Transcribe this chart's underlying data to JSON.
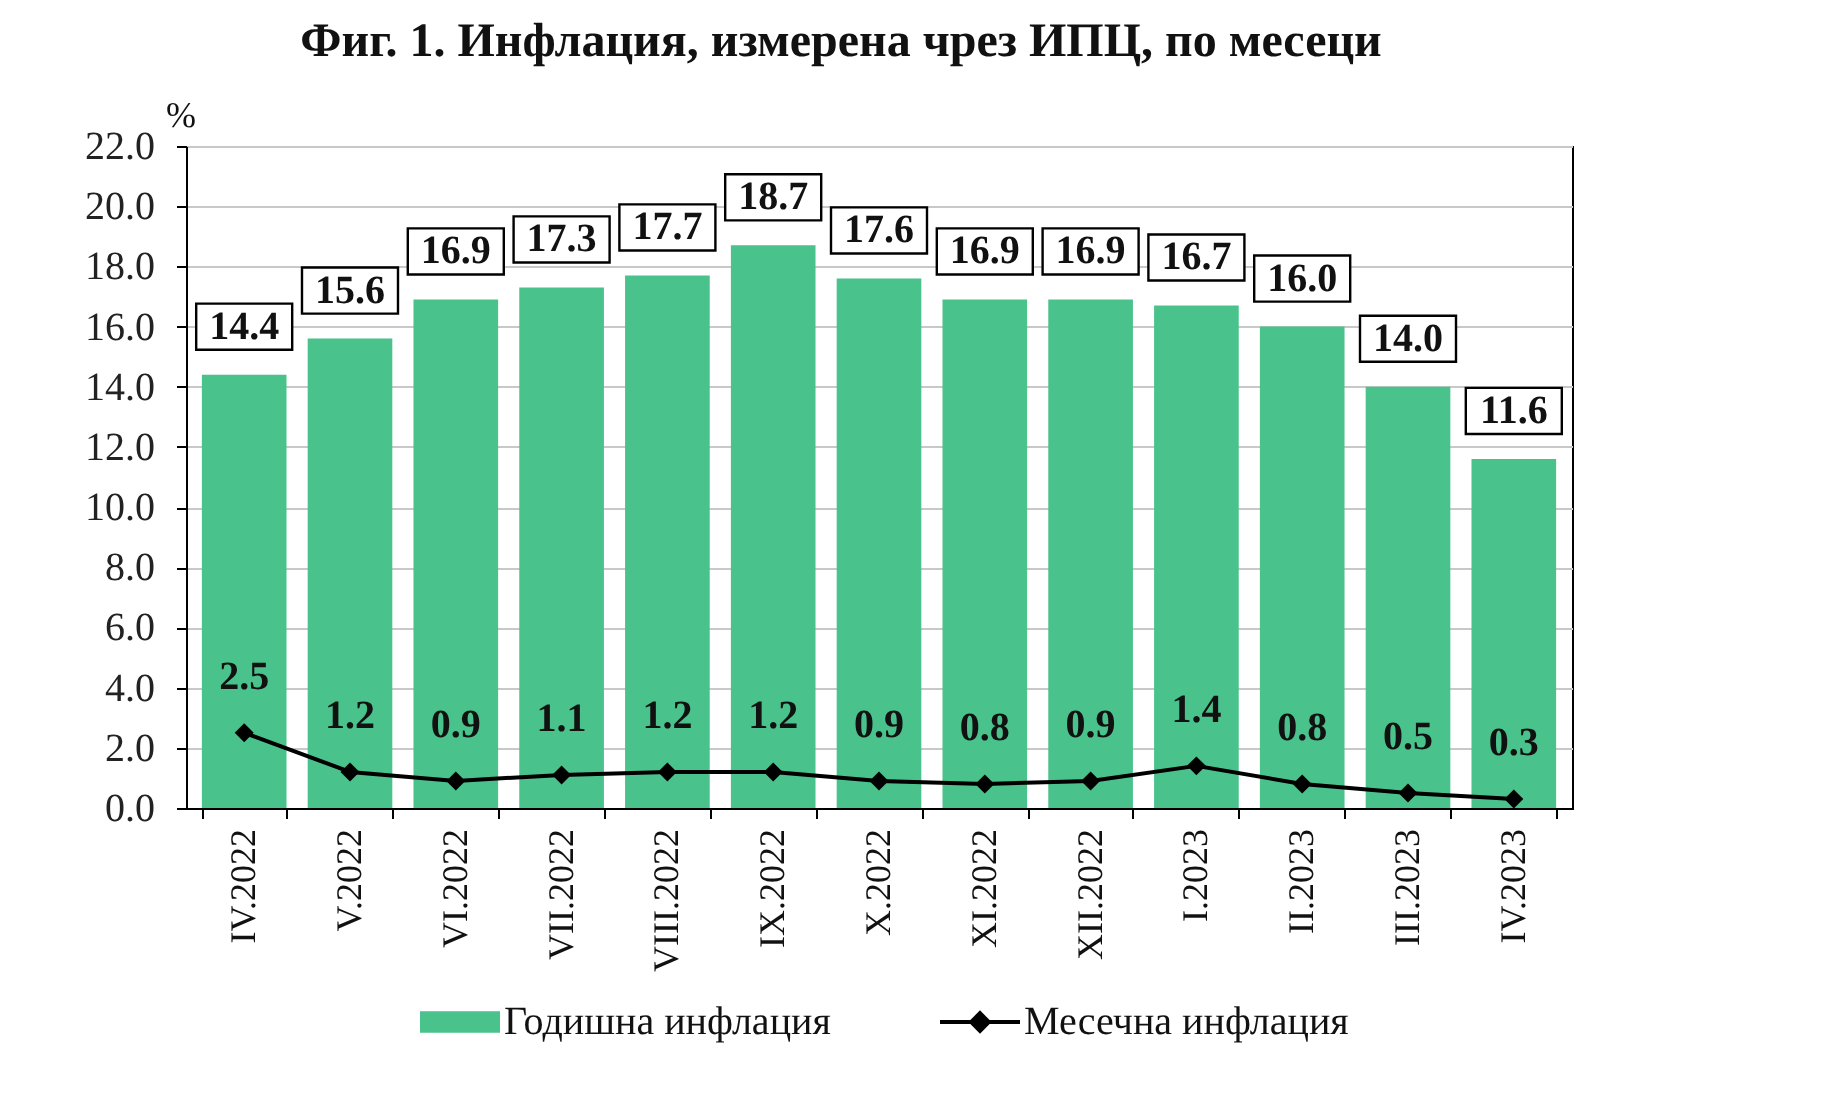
{
  "chart_data": {
    "type": "bar",
    "title": "Фиг. 1. Инфлация, измерена чрез ИПЦ, по месеци",
    "ylabel": "%",
    "categories": [
      "IV.2022",
      "V.2022",
      "VI.2022",
      "VII.2022",
      "VIII.2022",
      "IX.2022",
      "X.2022",
      "XI.2022",
      "XII.2022",
      "I.2023",
      "II.2023",
      "III.2023",
      "IV.2023"
    ],
    "series": [
      {
        "name": "Годишна инфлация",
        "color": "#49c28b",
        "values": [
          14.4,
          15.6,
          16.9,
          17.3,
          17.7,
          18.7,
          17.6,
          16.9,
          16.9,
          16.7,
          16.0,
          14.0,
          11.6
        ],
        "value_labels": [
          "14.4",
          "15.6",
          "16.9",
          "17.3",
          "17.7",
          "18.7",
          "17.6",
          "16.9",
          "16.9",
          "16.7",
          "16.0",
          "14.0",
          "11.6"
        ]
      },
      {
        "name": "Месечна инфлация",
        "type": "line",
        "color": "#000000",
        "values": [
          2.5,
          1.2,
          0.9,
          1.1,
          1.2,
          1.2,
          0.9,
          0.8,
          0.9,
          1.4,
          0.8,
          0.5,
          0.3
        ],
        "value_labels": [
          "2.5",
          "1.2",
          "0.9",
          "1.1",
          "1.2",
          "1.2",
          "0.9",
          "0.8",
          "0.9",
          "1.4",
          "0.8",
          "0.5",
          "0.3"
        ]
      }
    ],
    "ylim": [
      0,
      22
    ],
    "yticks": [
      {
        "value": 0,
        "label": "0.0"
      },
      {
        "value": 2,
        "label": "2.0"
      },
      {
        "value": 4,
        "label": "4.0"
      },
      {
        "value": 6,
        "label": "6.0"
      },
      {
        "value": 8,
        "label": "8.0"
      },
      {
        "value": 10,
        "label": "10.0"
      },
      {
        "value": 12,
        "label": "12.0"
      },
      {
        "value": 14,
        "label": "14.0"
      },
      {
        "value": 16,
        "label": "16.0"
      },
      {
        "value": 18,
        "label": "18.0"
      },
      {
        "value": 20,
        "label": "20.0"
      },
      {
        "value": 22,
        "label": "22.0"
      }
    ],
    "grid": "y",
    "legend": "bottom",
    "marker": "diamond"
  }
}
